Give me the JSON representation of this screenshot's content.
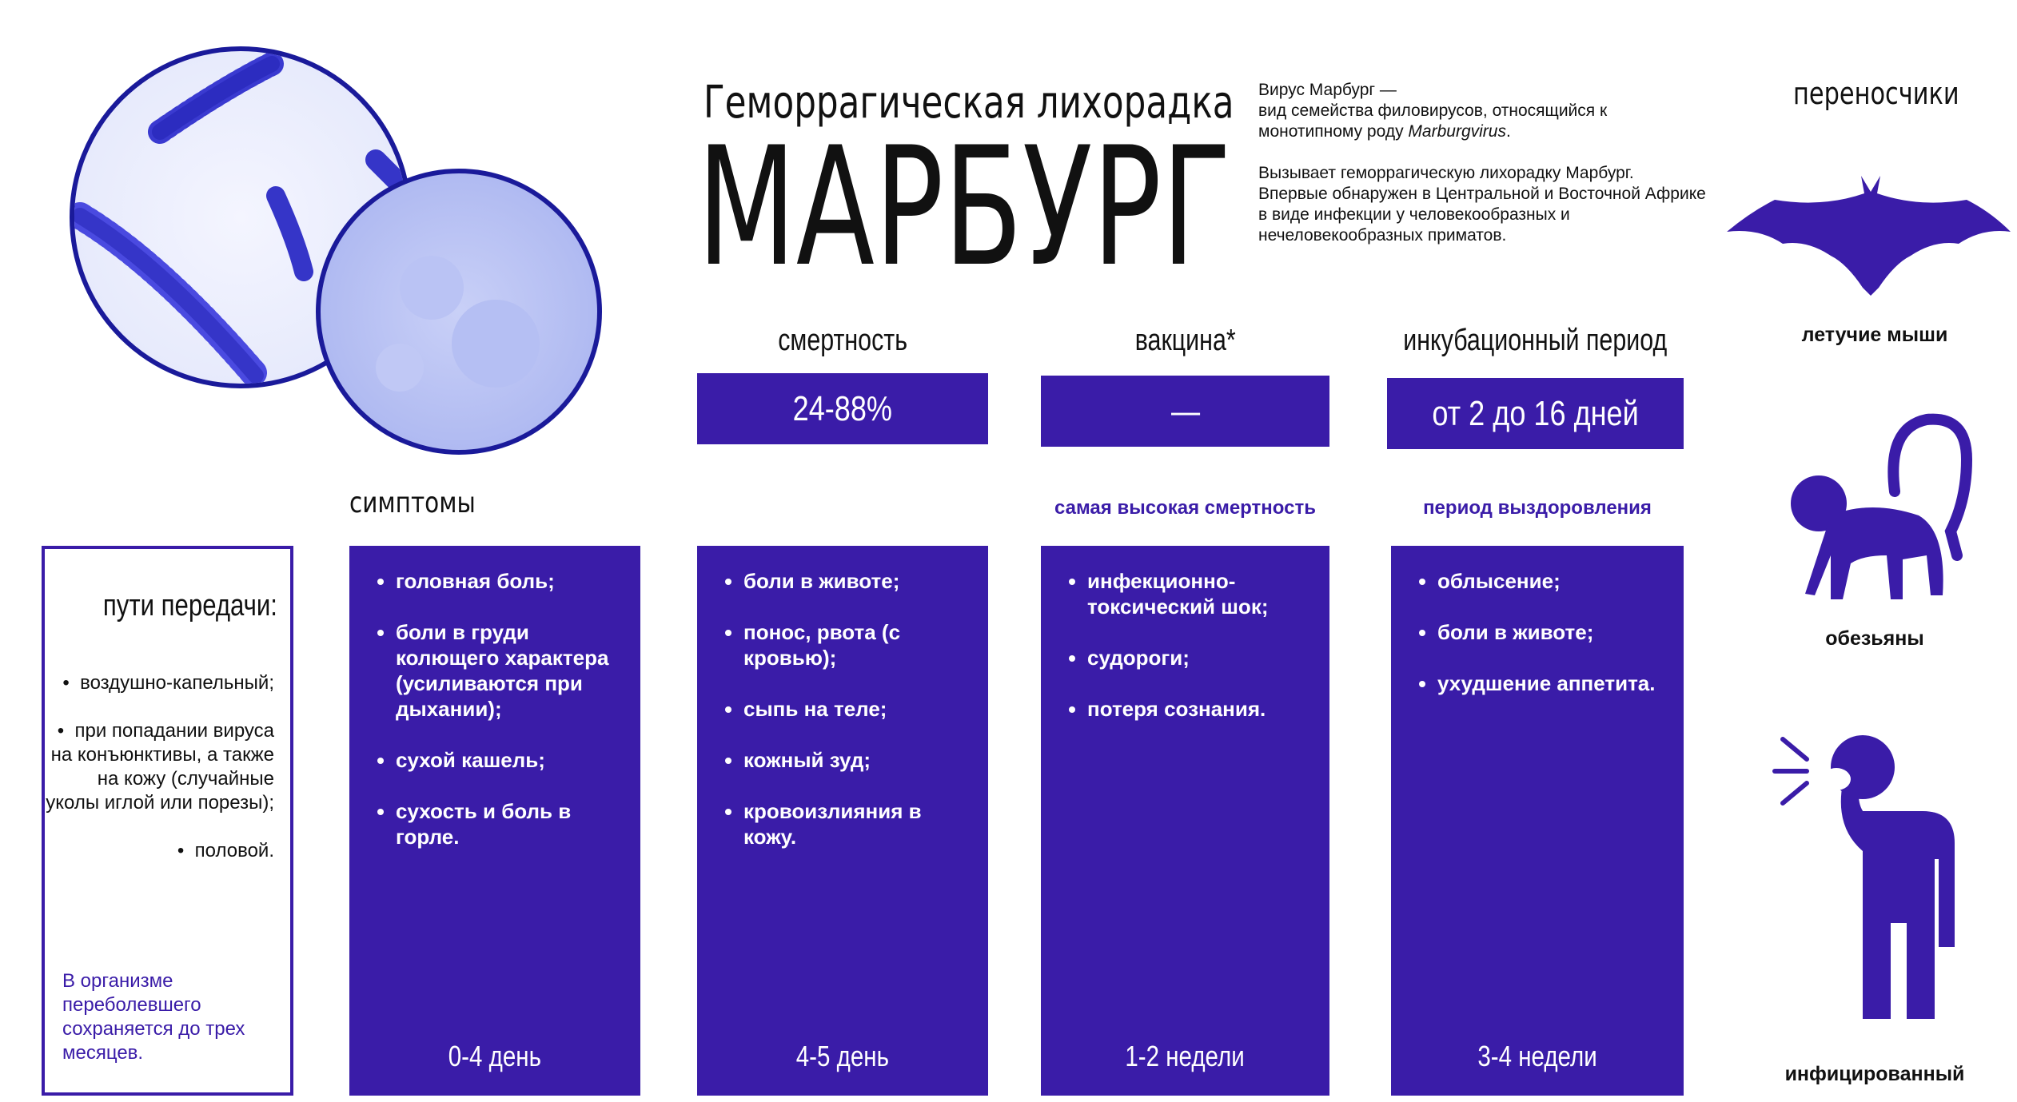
{
  "header": {
    "subtitle": "Геморрагическая лихорадка",
    "title": "МАРБУРГ"
  },
  "description": {
    "intro": [
      "Вирус Марбург —",
      "вид семейства филовирусов, относящийся к",
      "монотипному роду ",
      "Marburgvirus",
      "."
    ],
    "text": "Вызывает геморрагическую лихорадку Марбург. Впервые обнаружен в Центральной и Восточной Африке в  виде инфекции у человекообразных и нечеловекообразных приматов."
  },
  "stats": [
    {
      "label": "смертность",
      "value": "24-88%"
    },
    {
      "label": "вакцина*",
      "value": "—"
    },
    {
      "label": "инкубационный период",
      "value": "от 2 до 16 дней"
    }
  ],
  "symptoms": {
    "title": "симптомы",
    "columns": [
      {
        "items": [
          "головная боль;",
          "боли в груди колющего характера (усиливаются при дыхании);",
          "сухой кашель;",
          "сухость и боль в горле."
        ],
        "period": "0-4 день"
      },
      {
        "items": [
          "боли в животе;",
          "понос, рвота (с кровью);",
          "сыпь на теле;",
          "кожный зуд;",
          "кровоизлияния в кожу."
        ],
        "period": "4-5 день"
      },
      {
        "note": "самая высокая смертность",
        "items": [
          "инфекционно-токсический шок;",
          "судороги;",
          "потеря сознания."
        ],
        "period": "1-2 недели"
      },
      {
        "note": "период выздоровления",
        "items": [
          "облысение;",
          "боли в животе;",
          "ухудшение аппетита."
        ],
        "period": "3-4 недели"
      }
    ]
  },
  "transmission": {
    "title": "пути передачи:",
    "items": [
      "воздушно-капельный;",
      "при попадании вируса на конъюнктивы, а также на кожу (случайные уколы иглой или порезы);",
      "половой."
    ],
    "footnote": "В организме переболевшего сохраняется до трех месяцев."
  },
  "carriers": {
    "title": "переносчики",
    "items": [
      "летучие мыши",
      "обезьяны",
      "инфицированный"
    ]
  }
}
